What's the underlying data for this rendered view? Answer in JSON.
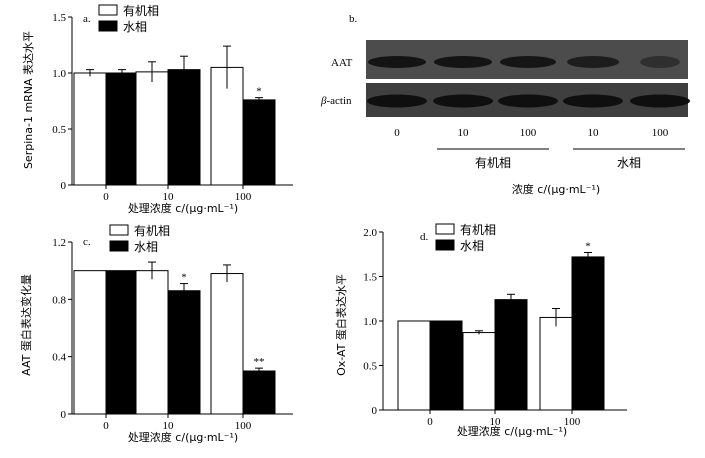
{
  "chart_data": [
    {
      "panel": "a.",
      "type": "bar",
      "categories": [
        "0",
        "10",
        "100"
      ],
      "series": [
        {
          "name": "有机相",
          "values": [
            1.0,
            1.01,
            1.05
          ],
          "errors": [
            0.03,
            0.09,
            0.19
          ]
        },
        {
          "name": "水相",
          "values": [
            1.0,
            1.03,
            0.76
          ],
          "errors": [
            0.03,
            0.12,
            0.02
          ]
        }
      ],
      "annotations": [
        {
          "category": "100",
          "series": "水相",
          "text": "*"
        }
      ],
      "xlabel": "处理浓度 c/(μg·mL⁻¹)",
      "ylabel": "Serpina-1 mRNA 表达水平",
      "ylim": [
        0,
        1.5
      ],
      "yticks": [
        "0",
        "0.5",
        "1.0",
        "1.5"
      ],
      "legend": "top-left"
    },
    {
      "panel": "b.",
      "type": "blot",
      "rows": [
        "AAT",
        "β-actin"
      ],
      "row_label_parts": {
        "AAT": [
          "AAT"
        ],
        "beta": [
          "β",
          "-actin"
        ]
      },
      "lane_labels": [
        "0",
        "10",
        "100",
        "10",
        "100"
      ],
      "groups": [
        "有机相",
        "水相"
      ],
      "xlabel": "浓度 c/(μg·mL⁻¹)"
    },
    {
      "panel": "c.",
      "type": "bar",
      "categories": [
        "0",
        "10",
        "100"
      ],
      "series": [
        {
          "name": "有机相",
          "values": [
            1.0,
            1.0,
            0.98
          ],
          "errors": [
            0.0,
            0.06,
            0.06
          ]
        },
        {
          "name": "水相",
          "values": [
            1.0,
            0.86,
            0.3
          ],
          "errors": [
            0.0,
            0.05,
            0.02
          ]
        }
      ],
      "annotations": [
        {
          "category": "10",
          "series": "水相",
          "text": "*"
        },
        {
          "category": "100",
          "series": "水相",
          "text": "**"
        }
      ],
      "xlabel": "处理浓度 c/(μg·mL⁻¹)",
      "ylabel": "AAT 蛋白表达变化量",
      "ylim": [
        0,
        1.2
      ],
      "yticks": [
        "0",
        "0.4",
        "0.8",
        "1.2"
      ],
      "legend": "top-left"
    },
    {
      "panel": "d.",
      "type": "bar",
      "categories": [
        "0",
        "10",
        "100"
      ],
      "series": [
        {
          "name": "有机相",
          "values": [
            1.0,
            0.87,
            1.04
          ],
          "errors": [
            0.0,
            0.02,
            0.1
          ]
        },
        {
          "name": "水相",
          "values": [
            1.0,
            1.24,
            1.72
          ],
          "errors": [
            0.0,
            0.06,
            0.05
          ]
        }
      ],
      "annotations": [
        {
          "category": "100",
          "series": "水相",
          "text": "*"
        }
      ],
      "xlabel": "处理浓度 c/(μg·mL⁻¹)",
      "ylabel": "Ox-AT 蛋白表达水平",
      "ylim": [
        0,
        2.0
      ],
      "yticks": [
        "0",
        "0.5",
        "1.0",
        "1.5",
        "2.0"
      ],
      "legend": "top-left"
    }
  ]
}
